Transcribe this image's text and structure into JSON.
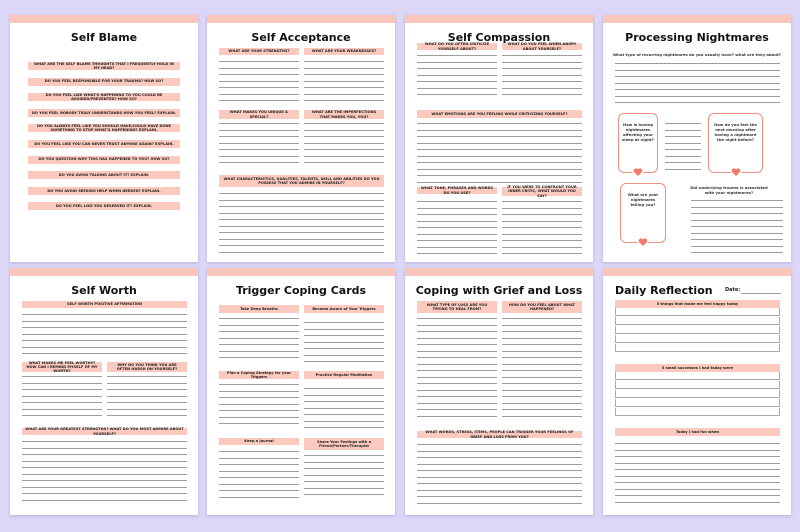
{
  "pages": [
    {
      "title": "Self Blame",
      "prompts": [
        "WHAT ARE THE SELF BLAME THOUGHTS THAT I FREQUENTLY HOLD IN MY HEAD?",
        "DO YOU FEEL RESPONSIBLE FOR YOUR TRAUMA? HOW SO?",
        "DO YOU FEEL LIKE WHAT'S HAPPENING TO YOU COULD BE AVOIDED/PREVENTED? HOW SO?",
        "DO YOU FEEL NOBODY TRULY UNDERSTANDS HOW YOU FEEL? EXPLAIN.",
        "DO YOU ALWAYS FEEL LIKE YOU SHOULD HAVE/COULD HAVE DONE SOMETHING TO STOP WHAT'S HAPPENING? EXPLAIN.",
        "DO YOU FEEL LIKE YOU CAN NEVER TRUST ANYONE AGAIN? EXPLAIN.",
        "DO YOU QUESTION WHY THIS HAS HAPPENED TO YOU? HOW SO?",
        "DO YOU AVOID TALKING ABOUT IT? EXPLAIN.",
        "DO YOU AVOID SEEKING HELP WHEN NEEDED? EXPLAIN.",
        "DO YOU FEEL LIKE YOU DESERVED IT? EXPLAIN."
      ]
    },
    {
      "title": "Self Acceptance",
      "prompts": [
        "WHAT ARE YOUR STRENGTHS?",
        "WHAT ARE YOUR WEAKNESSES?",
        "WHAT MAKES YOU UNIQUE & SPECIAL?",
        "WHAT ARE THE IMPERFECTIONS THAT MAKES YOU, YOU?",
        "WHAT CHARACTERISTICS, QUALITIES, TALENTS, SKILL AND ABILITIES DO YOU POSSESS THAT YOU ADMIRE IN YOURSELF?"
      ]
    },
    {
      "title": "Self Compassion",
      "prompts": [
        "WHAT DO YOU OFTEN CRITICIZE YOURSELF ABOUT?",
        "WHAT DO YOU FEEL WHEN ANGRY ABOUT YOURSELF?",
        "WHAT EMOTIONS ARE YOU FEELING WHILE CRITICIZING YOURSELF?",
        "WHAT TONE, PHRASES AND WORDS DO YOU USE?",
        "IF YOU WERE TO CONFRONT YOUR INNER CRITIC, WHAT WOULD YOU SAY?"
      ]
    },
    {
      "title": "Processing Nightmares",
      "prompts": [
        "What type of recurring nightmares do you usually have? what are they about?",
        "How is having nightmares affecting your sleep at night?",
        "How do you feel the next morning after having a nightmare the night before?",
        "What are your nightmares telling you?",
        "Did underlying trauma is associated with your nightmares?"
      ]
    },
    {
      "title": "Self Worth",
      "prompts": [
        "SELF WORTH POSITIVE AFFIRMATION",
        "WHAT MAKES ME FEEL WORTHY? HOW CAN I REMIND MYSELF OF MY WORTH?",
        "WHY DO YOU THINK YOU ARE OFTEN HARSH ON YOURSELF?",
        "WHAT ARE YOUR GREATEST STRENGTHS? WHAT DO YOU MOST ADMIRE ABOUT YOURSELF?"
      ]
    },
    {
      "title": "Trigger Coping Cards",
      "prompts": [
        "Take Deep Breaths",
        "Become Aware of Your Triggers",
        "Plan a Coping Strategy for your Triggers",
        "Practice Regular Meditation",
        "Keep a Journal",
        "Share Your Feelings with a Friend/Partner/Therapist"
      ]
    },
    {
      "title": "Coping with Grief and Loss",
      "prompts": [
        "WHAT TYPE OF LOSS ARE YOU TRYING TO HEAL FROM?",
        "HOW DO YOU FEEL ABOUT WHAT HAPPENED?",
        "WHAT WORDS, STRESS, ITEMS, PEOPLE CAN TRIGGER YOUR FEELINGS OF GRIEF AND LOSS FROM YOU?"
      ]
    },
    {
      "title": "Daily Reflection",
      "date_label": "Date:",
      "prompts": [
        "5 things that made me feel happy today",
        "5 small successes I had today were",
        "Today I had fun when"
      ]
    }
  ]
}
